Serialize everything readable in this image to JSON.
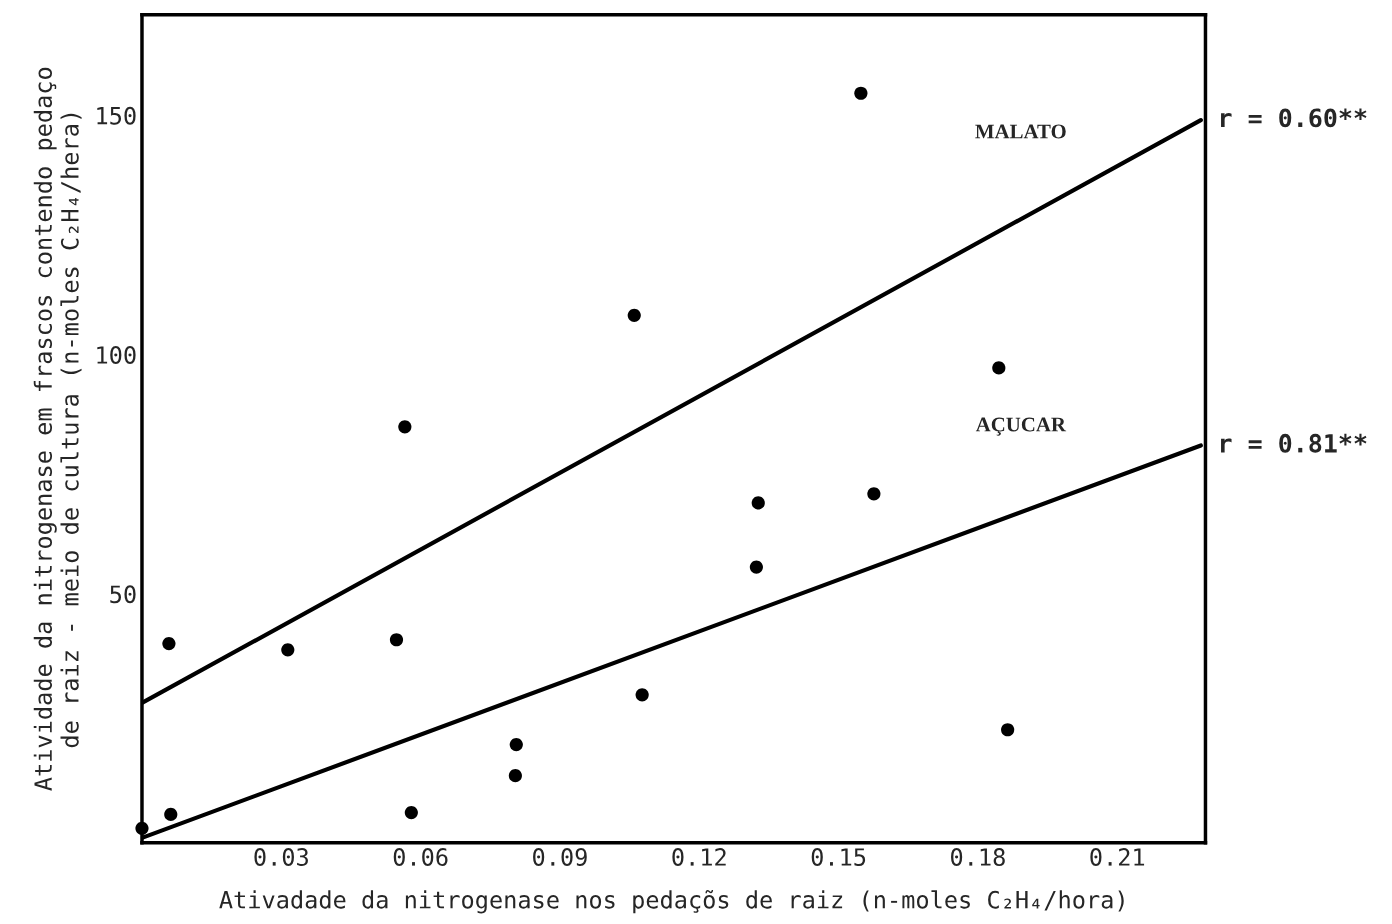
{
  "chart_data": {
    "type": "scatter",
    "xlabel": "Ativadade da nitrogenase nos pedaçõs de raiz (n-moles C₂H₄/hora)",
    "ylabel": "Atividade da nitrogenase em frascos contendo pedaço\nde raiz - meio de cultura (n-moles C₂H₄/hera)",
    "xlim": [
      0,
      0.229
    ],
    "ylim": [
      -2,
      171
    ],
    "xticks": [
      0.03,
      0.06,
      0.09,
      0.12,
      0.15,
      0.18,
      0.21
    ],
    "yticks": [
      50,
      100,
      150
    ],
    "grid": false,
    "series": [
      {
        "marker": "circle",
        "color": "#000000",
        "x": [
          0.0,
          0.0058,
          0.0062,
          0.0314,
          0.0548,
          0.0566,
          0.058,
          0.0806,
          0.0804,
          0.106,
          0.1077,
          0.1323,
          0.1327,
          0.1548,
          0.1576,
          0.1845,
          0.1864
        ],
        "values": [
          1,
          39.6,
          3.9,
          38.3,
          40.4,
          84.9,
          4.3,
          18.5,
          12.0,
          108.2,
          28.9,
          55.6,
          69.0,
          154.6,
          70.9,
          97.2,
          21.6
        ]
      },
      {
        "type": "line",
        "name": "MALATO",
        "marker": "none",
        "color": "#000000",
        "line_style": "solid",
        "x": [
          0,
          0.228
        ],
        "values": [
          27.2,
          149
        ]
      },
      {
        "type": "line",
        "name": "AÇUCAR",
        "marker": "none",
        "color": "#000000",
        "line_style": "solid",
        "x": [
          0,
          0.228
        ],
        "values": [
          -1,
          81
        ]
      }
    ],
    "annotations": [
      {
        "text": "r = 0.60**",
        "x": 0.228,
        "y": 149
      },
      {
        "text": "r = 0.81**",
        "x": 0.228,
        "y": 81
      }
    ]
  }
}
